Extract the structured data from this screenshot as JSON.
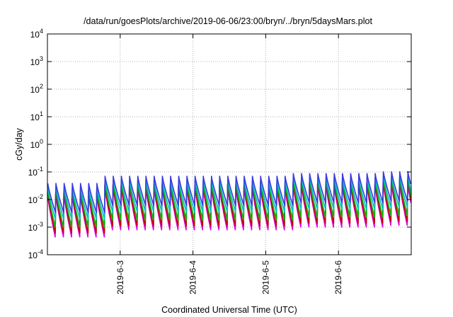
{
  "chart_data": {
    "type": "line",
    "title": "/data/run/goesPlots/archive/2019-06-06/23:00/bryn/../bryn/5daysMars.plot",
    "xlabel": "Coordinated Universal Time (UTC)",
    "ylabel": "cGy/day",
    "xlim": [
      "2019-06-02T00:00",
      "2019-06-07T00:00"
    ],
    "yscale": "log",
    "ylim": [
      0.0001,
      10000
    ],
    "grid": true,
    "y_ticks": [
      {
        "base": "10",
        "exp": "4"
      },
      {
        "base": "10",
        "exp": "3"
      },
      {
        "base": "10",
        "exp": "2"
      },
      {
        "base": "10",
        "exp": "1"
      },
      {
        "base": "10",
        "exp": "0"
      },
      {
        "base": "10",
        "exp": "-1"
      },
      {
        "base": "10",
        "exp": "-2"
      },
      {
        "base": "10",
        "exp": "-3"
      },
      {
        "base": "10",
        "exp": "-4"
      }
    ],
    "x_ticks": [
      "2019-6-3",
      "2019-6-4",
      "2019-6-5",
      "2019-6-6"
    ],
    "cycle_hours": 2.7,
    "series": [
      {
        "color": "#e000e0",
        "peak_start": 0.03,
        "trough": 0.0008
      },
      {
        "color": "#c00000",
        "peak_start": 0.035,
        "trough": 0.0011
      },
      {
        "color": "#00b000",
        "peak_start": 0.04,
        "trough": 0.0018
      },
      {
        "color": "#00c0c0",
        "peak_start": 0.05,
        "trough": 0.0035
      },
      {
        "color": "#3a3ae0",
        "peak_start": 0.07,
        "trough": 0.006
      }
    ]
  }
}
